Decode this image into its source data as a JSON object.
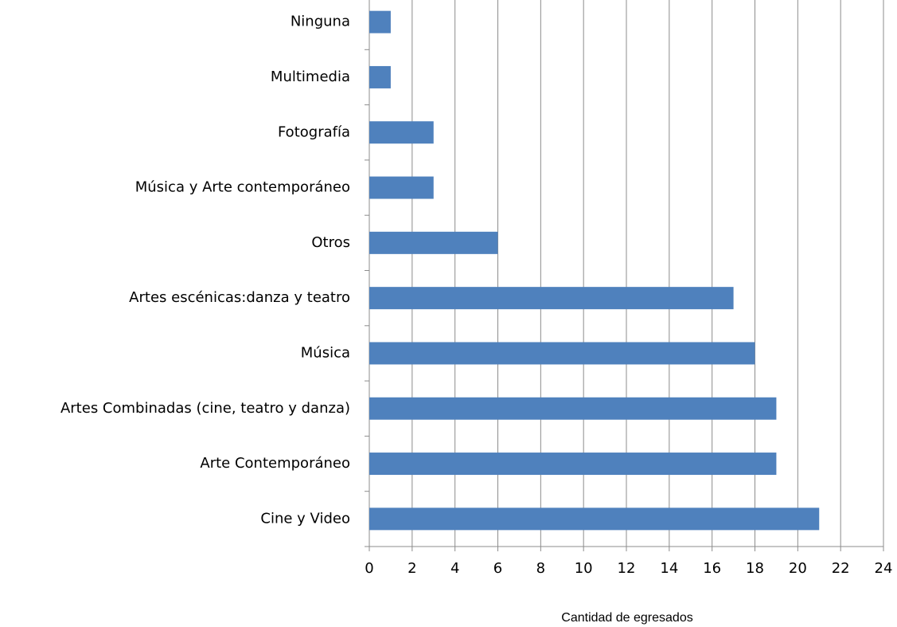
{
  "chart_data": {
    "type": "bar",
    "orientation": "horizontal",
    "categories": [
      "Ninguna",
      "Multimedia",
      "Fotografía",
      "Música y Arte contemporáneo",
      "Otros",
      "Artes escénicas:danza y teatro",
      "Música",
      "Artes Combinadas (cine, teatro y danza)",
      "Arte Contemporáneo",
      "Cine y Video"
    ],
    "values": [
      1,
      1,
      3,
      3,
      6,
      17,
      18,
      19,
      19,
      21
    ],
    "color": "#4f81bd",
    "xlabel": "Cantidad de egresados",
    "xlim": [
      0,
      24
    ],
    "xticks": [
      0,
      2,
      4,
      6,
      8,
      10,
      12,
      14,
      16,
      18,
      20,
      22,
      24
    ],
    "grid": true
  }
}
